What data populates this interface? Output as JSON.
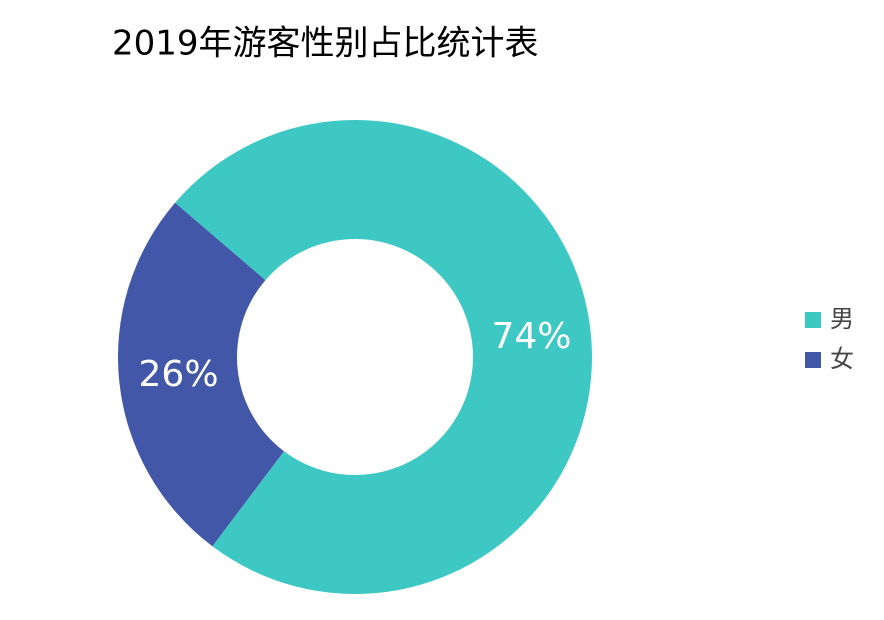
{
  "chart_data": {
    "type": "donut",
    "title": "2019年游客性别占比统计表",
    "categories": [
      "男",
      "女"
    ],
    "values": [
      74,
      26
    ],
    "value_labels": [
      "74%",
      "26%"
    ],
    "colors": [
      "#3ec8c4",
      "#4257a8"
    ],
    "legend": "right"
  }
}
